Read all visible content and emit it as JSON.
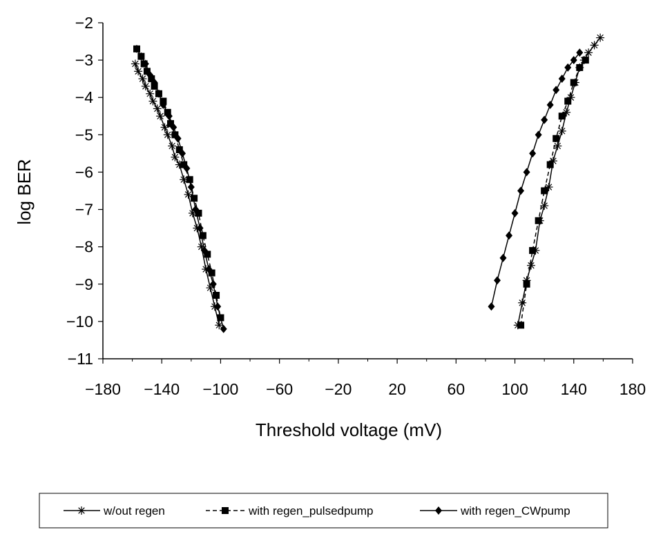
{
  "chart_data": {
    "type": "line",
    "title": "",
    "xlabel": "Threshold voltage (mV)",
    "ylabel": "log BER",
    "xlim": [
      -180,
      180
    ],
    "ylim": [
      -11,
      -2
    ],
    "x_ticks": [
      -180,
      -140,
      -100,
      -60,
      -20,
      20,
      60,
      100,
      140,
      180
    ],
    "y_ticks": [
      -2,
      -3,
      -4,
      -5,
      -6,
      -7,
      -8,
      -9,
      -10,
      -11
    ],
    "x_tick_labels": [
      "−180",
      "−140",
      "−100",
      "−60",
      "−20",
      "20",
      "60",
      "100",
      "140",
      "180"
    ],
    "y_tick_labels": [
      "−2",
      "−3",
      "−4",
      "−5",
      "−6",
      "−7",
      "−8",
      "−9",
      "−10",
      "−11"
    ],
    "grid": false,
    "legend_position": "bottom",
    "series": [
      {
        "name": "w/out regen",
        "marker": "asterisk",
        "line_style": "solid",
        "branches": [
          {
            "x": [
              -158,
              -156,
              -153,
              -151,
              -148,
              -146,
              -143,
              -141,
              -138,
              -136,
              -133,
              -131,
              -128,
              -125,
              -122,
              -119,
              -116,
              -113,
              -110,
              -107,
              -104,
              -101
            ],
            "y": [
              -3.1,
              -3.3,
              -3.5,
              -3.7,
              -3.9,
              -4.1,
              -4.3,
              -4.5,
              -4.8,
              -5.0,
              -5.3,
              -5.6,
              -5.8,
              -6.2,
              -6.6,
              -7.1,
              -7.5,
              -8.0,
              -8.6,
              -9.1,
              -9.6,
              -10.1
            ]
          },
          {
            "x": [
              102,
              105,
              108,
              111,
              114,
              117,
              120,
              123,
              126,
              129,
              132,
              135,
              138,
              141,
              144,
              147,
              150,
              154,
              158
            ],
            "y": [
              -10.1,
              -9.5,
              -8.9,
              -8.5,
              -8.1,
              -7.3,
              -6.9,
              -6.4,
              -5.7,
              -5.3,
              -4.9,
              -4.4,
              -4.0,
              -3.6,
              -3.2,
              -3.0,
              -2.8,
              -2.6,
              -2.4
            ]
          }
        ]
      },
      {
        "name": "with regen_pulsedpump",
        "marker": "square",
        "line_style": "dashed",
        "branches": [
          {
            "x": [
              -157,
              -154,
              -152,
              -150,
              -147,
              -145,
              -142,
              -139,
              -136,
              -134,
              -131,
              -128,
              -125,
              -121,
              -118,
              -115,
              -112,
              -109,
              -106,
              -103,
              -100
            ],
            "y": [
              -2.7,
              -2.9,
              -3.1,
              -3.3,
              -3.5,
              -3.7,
              -3.9,
              -4.1,
              -4.4,
              -4.7,
              -5.0,
              -5.4,
              -5.8,
              -6.2,
              -6.7,
              -7.1,
              -7.7,
              -8.2,
              -8.7,
              -9.3,
              -9.9
            ]
          },
          {
            "x": [
              104,
              108,
              112,
              116,
              120,
              124,
              128,
              132,
              136,
              140,
              144,
              148
            ],
            "y": [
              -10.1,
              -9.0,
              -8.1,
              -7.3,
              -6.5,
              -5.8,
              -5.1,
              -4.5,
              -4.1,
              -3.6,
              -3.2,
              -3.0
            ]
          }
        ]
      },
      {
        "name": "with regen_CWpump",
        "marker": "diamond",
        "line_style": "solid",
        "branches": [
          {
            "x": [
              -157,
              -154,
              -151,
              -148,
              -145,
              -142,
              -139,
              -135,
              -132,
              -129,
              -126,
              -123,
              -120,
              -117,
              -114,
              -111,
              -108,
              -105,
              -102,
              -98
            ],
            "y": [
              -2.7,
              -2.9,
              -3.1,
              -3.4,
              -3.6,
              -3.9,
              -4.2,
              -4.5,
              -4.8,
              -5.1,
              -5.5,
              -5.9,
              -6.4,
              -7.0,
              -7.5,
              -8.1,
              -8.6,
              -9.0,
              -9.6,
              -10.2
            ]
          },
          {
            "x": [
              84,
              88,
              92,
              96,
              100,
              104,
              108,
              112,
              116,
              120,
              124,
              128,
              132,
              136,
              140,
              144
            ],
            "y": [
              -9.6,
              -8.9,
              -8.3,
              -7.7,
              -7.1,
              -6.5,
              -6.0,
              -5.5,
              -5.0,
              -4.6,
              -4.2,
              -3.8,
              -3.5,
              -3.2,
              -3.0,
              -2.8
            ]
          }
        ]
      }
    ]
  }
}
